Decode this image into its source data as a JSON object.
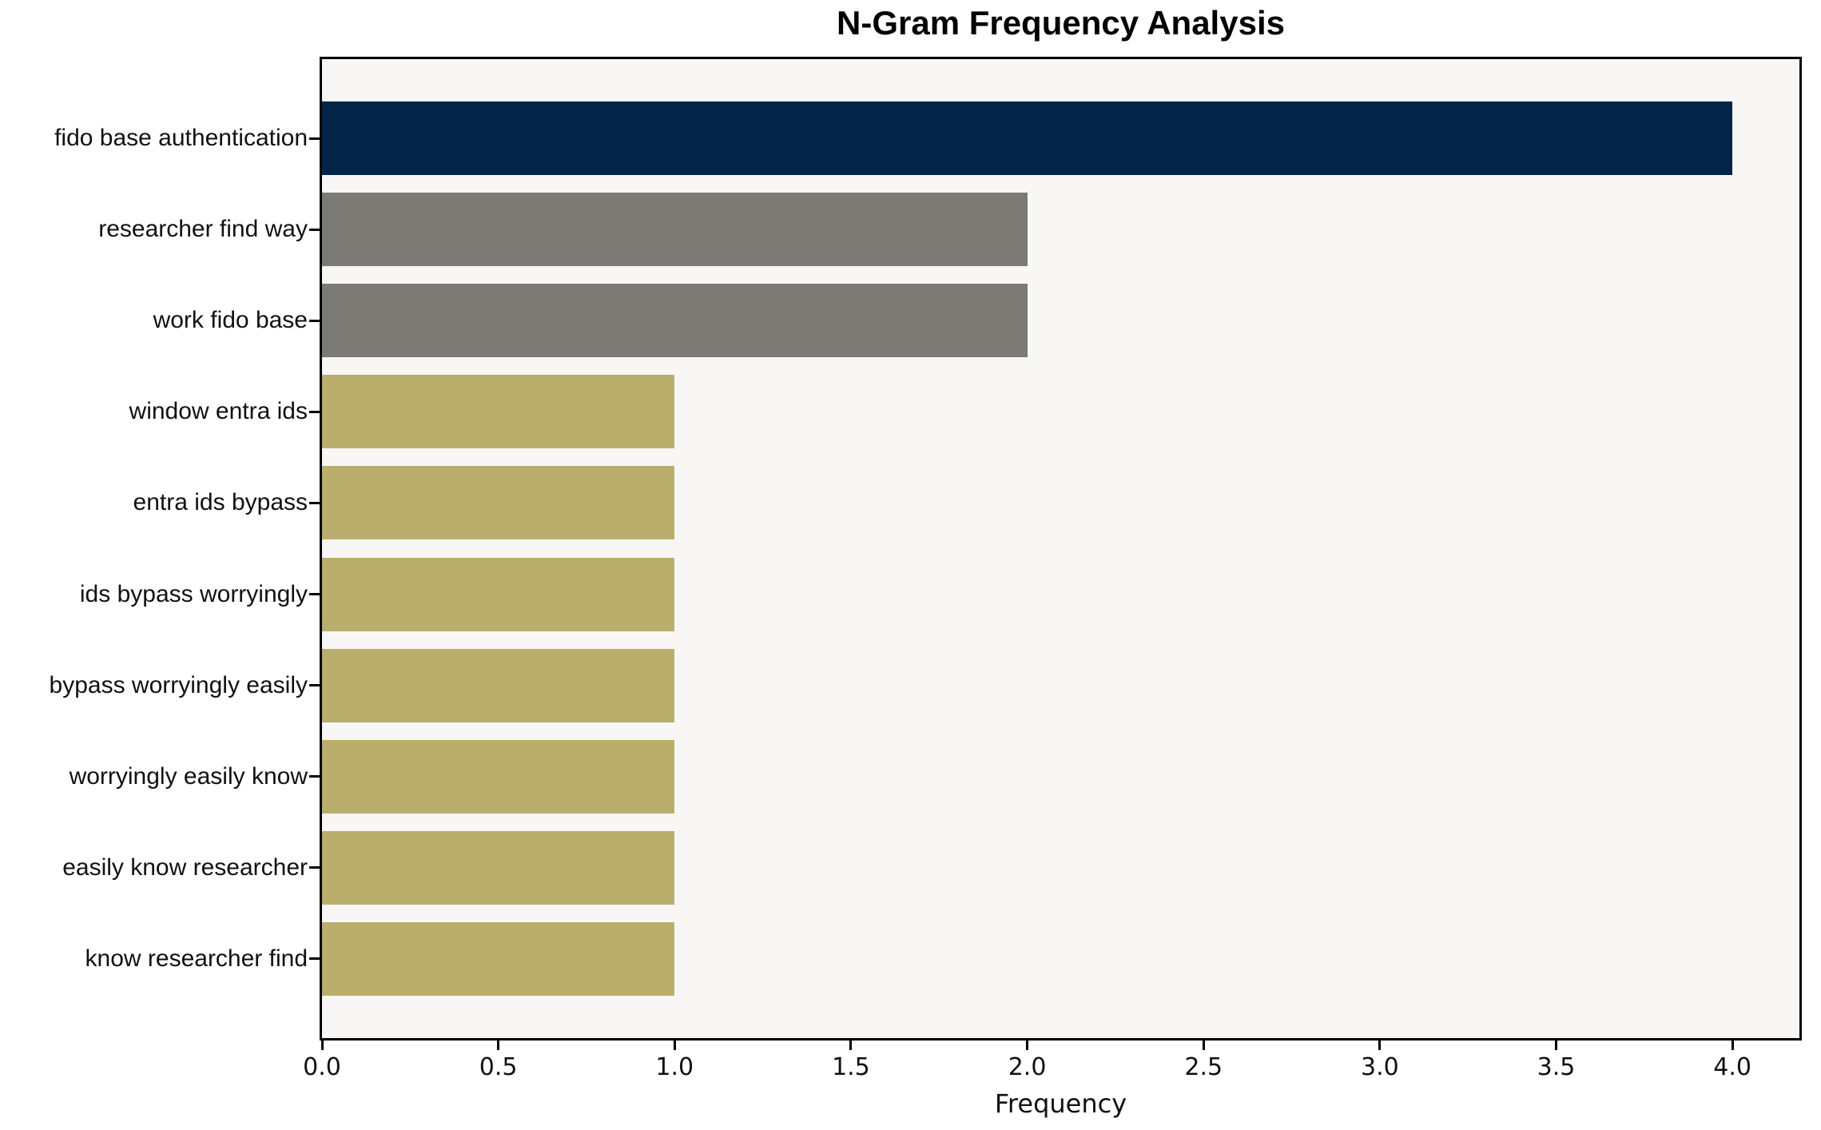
{
  "page": {
    "background": "#ffffff"
  },
  "chart_data": {
    "type": "bar",
    "orientation": "horizontal",
    "title": "N-Gram Frequency Analysis",
    "xlabel": "Frequency",
    "ylabel": "",
    "categories": [
      "fido base authentication",
      "researcher find way",
      "work fido base",
      "window entra ids",
      "entra ids bypass",
      "ids bypass worryingly",
      "bypass worryingly easily",
      "worryingly easily know",
      "easily know researcher",
      "know researcher find"
    ],
    "values": [
      4,
      2,
      2,
      1,
      1,
      1,
      1,
      1,
      1,
      1
    ],
    "bar_colors": [
      "#032449",
      "#7b7a75",
      "#7b7a75",
      "#baae6d",
      "#baae6d",
      "#baae6d",
      "#baae6d",
      "#baae6d",
      "#baae6d",
      "#baae6d"
    ],
    "xlim": [
      0,
      4.19
    ],
    "xticks": [
      "0.0",
      "0.5",
      "1.0",
      "1.5",
      "2.0",
      "2.5",
      "3.0",
      "3.5",
      "4.0"
    ],
    "grid": false,
    "legend": false,
    "plot_background": "#f8f7f5",
    "spine_color": "#000000"
  }
}
